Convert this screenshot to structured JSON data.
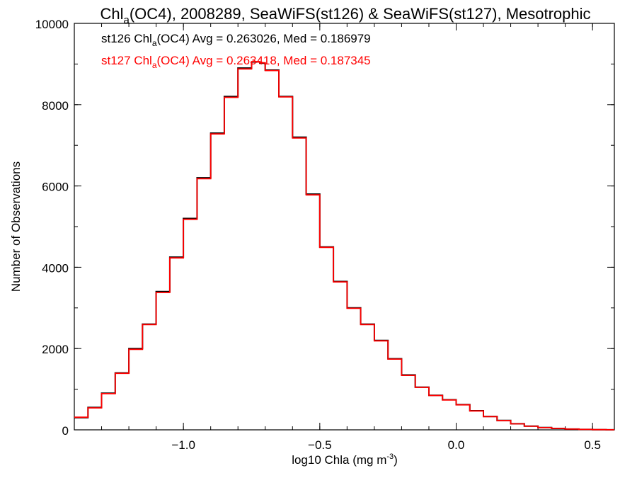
{
  "chart_data": {
    "type": "line",
    "title": {
      "prefix": "Chl",
      "sub": "a",
      "rest": "(OC4), 2008289, SeaWiFS(st126) & SeaWiFS(st127), Mesotrophic"
    },
    "xlabel": {
      "main": "log10 Chla (mg m",
      "sup": "-3",
      "close": ")"
    },
    "ylabel": "Number of Observations",
    "xlim": [
      -1.4,
      0.58
    ],
    "ylim": [
      0,
      10000
    ],
    "x_ticks": [
      -1.0,
      -0.5,
      0.0,
      0.5
    ],
    "x_tick_labels": [
      "−1.0",
      "−0.5",
      "0.0",
      "0.5"
    ],
    "x_minor_step": 0.1,
    "y_ticks": [
      0,
      2000,
      4000,
      6000,
      8000,
      10000
    ],
    "y_tick_labels": [
      "0",
      "2000",
      "4000",
      "6000",
      "8000",
      "10000"
    ],
    "y_minor_step": 1000,
    "grid": false,
    "legend_position": "top-left",
    "annotations": [
      {
        "series_index": 0,
        "prefix": "st126 Chl",
        "sub": "a",
        "rest": "(OC4) Avg = 0.263026, Med = 0.186979",
        "color": "#000000"
      },
      {
        "series_index": 1,
        "prefix": "st127 Chl",
        "sub": "a",
        "rest": "(OC4) Avg = 0.263418, Med = 0.187345",
        "color": "#ff0000"
      }
    ],
    "series": [
      {
        "name": "st126",
        "color": "#000000",
        "step": "post",
        "x": [
          -1.4,
          -1.35,
          -1.3,
          -1.25,
          -1.2,
          -1.15,
          -1.1,
          -1.05,
          -1.0,
          -0.95,
          -0.9,
          -0.85,
          -0.8,
          -0.75,
          -0.72,
          -0.7,
          -0.65,
          -0.6,
          -0.55,
          -0.5,
          -0.45,
          -0.4,
          -0.35,
          -0.3,
          -0.25,
          -0.2,
          -0.15,
          -0.1,
          -0.05,
          0.0,
          0.05,
          0.1,
          0.15,
          0.2,
          0.25,
          0.3,
          0.35,
          0.4,
          0.45,
          0.5,
          0.55,
          0.58
        ],
        "y": [
          300,
          550,
          900,
          1400,
          2000,
          2600,
          3400,
          4250,
          5200,
          6200,
          7300,
          8200,
          8900,
          9050,
          9020,
          8850,
          8200,
          7200,
          5800,
          4500,
          3650,
          3000,
          2600,
          2200,
          1750,
          1350,
          1050,
          850,
          740,
          620,
          470,
          330,
          230,
          150,
          90,
          55,
          35,
          20,
          10,
          5,
          2,
          1
        ]
      },
      {
        "name": "st127",
        "color": "#ff0000",
        "step": "post",
        "x": [
          -1.4,
          -1.35,
          -1.3,
          -1.25,
          -1.2,
          -1.15,
          -1.1,
          -1.05,
          -1.0,
          -0.95,
          -0.9,
          -0.85,
          -0.8,
          -0.75,
          -0.72,
          -0.7,
          -0.65,
          -0.6,
          -0.55,
          -0.5,
          -0.45,
          -0.4,
          -0.35,
          -0.3,
          -0.25,
          -0.2,
          -0.15,
          -0.1,
          -0.05,
          0.0,
          0.05,
          0.1,
          0.15,
          0.2,
          0.25,
          0.3,
          0.35,
          0.4,
          0.45,
          0.5,
          0.55,
          0.58
        ],
        "y": [
          310,
          540,
          890,
          1390,
          1980,
          2590,
          3380,
          4230,
          5180,
          6180,
          7280,
          8180,
          8880,
          9060,
          9030,
          8840,
          8190,
          7180,
          5780,
          4490,
          3640,
          2990,
          2590,
          2190,
          1740,
          1340,
          1045,
          845,
          735,
          615,
          465,
          325,
          228,
          148,
          89,
          54,
          34,
          19,
          10,
          5,
          2,
          1
        ]
      }
    ]
  }
}
